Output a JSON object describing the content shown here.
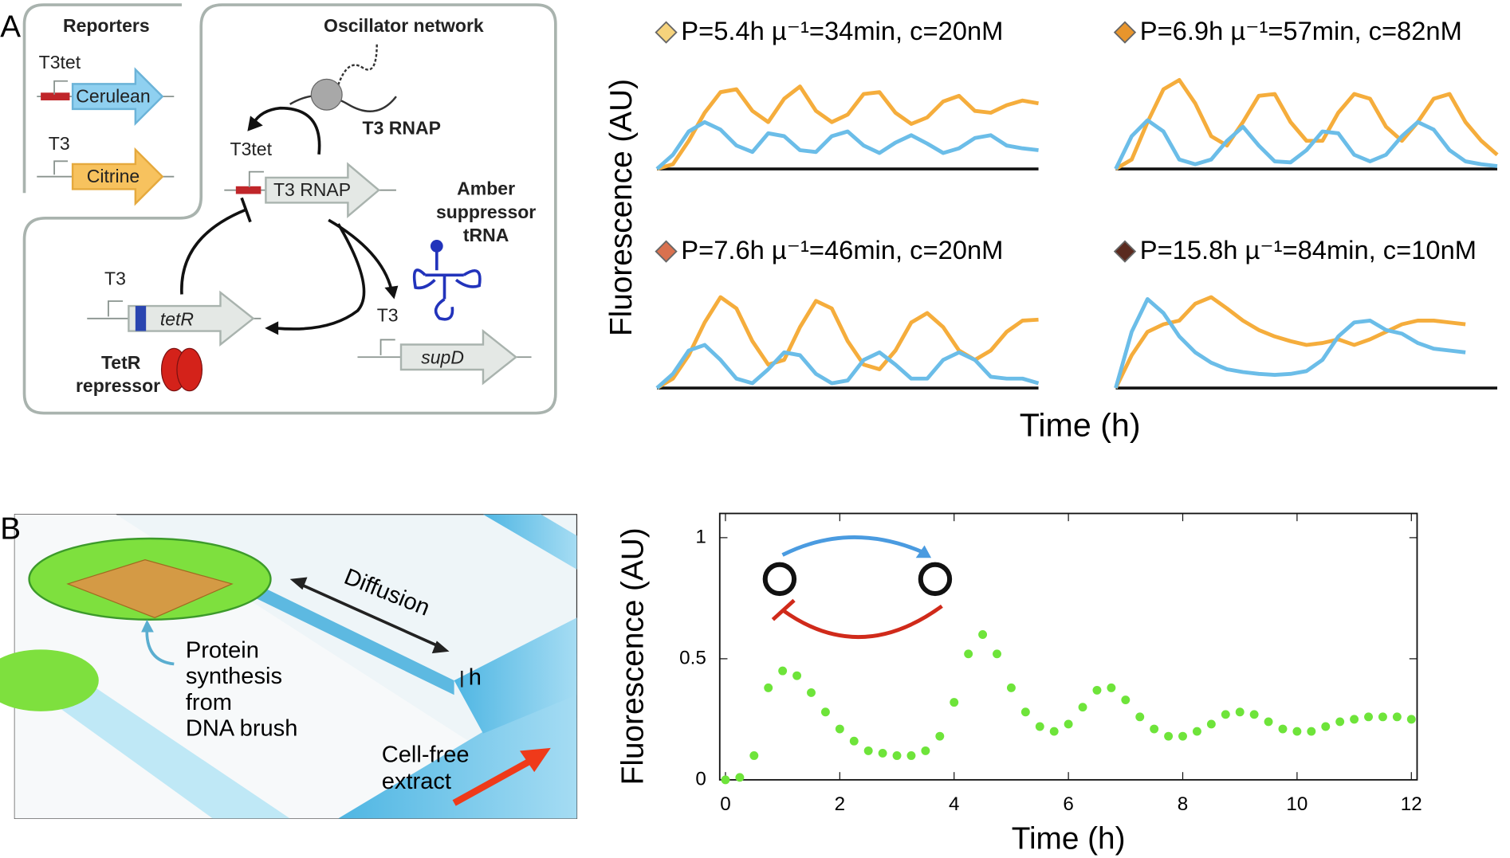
{
  "panel_a": {
    "label": "A",
    "y_label": "Fluorescence (AU)",
    "x_label": "Time (h)",
    "diagram": {
      "reporters": "Reporters",
      "oscillator_network": "Oscillator network",
      "cerulean_promoter": "T3tet",
      "cerulean": "Cerulean",
      "citrine_promoter": "T3",
      "citrine": "Citrine",
      "polymerase": "T3 RNAP",
      "rnap_promoter": "T3tet",
      "rnap_gene": "T3 RNAP",
      "trna": [
        "Amber",
        "suppressor",
        "tRNA"
      ],
      "tetr_promoter": "T3",
      "tetr_gene": "tetR",
      "repressor": [
        "TetR",
        "repressor"
      ],
      "supd_promoter": "T3",
      "supd_gene": "supD"
    }
  },
  "panel_b": {
    "label": "B",
    "diagram": {
      "diffusion": "Diffusion",
      "synthesis": [
        "Protein",
        "synthesis",
        "from",
        "DNA brush"
      ],
      "height": "h",
      "extract": [
        "Cell-free",
        "extract"
      ]
    }
  },
  "chart_data": [
    {
      "type": "line",
      "title": "P=5.4h µ⁻¹=34min, c=20nM",
      "marker_color": "#f6d37c",
      "xlim": [
        0,
        24
      ],
      "ylim": [
        0,
        1
      ],
      "x": [
        0,
        1,
        2,
        3,
        4,
        5,
        6,
        7,
        8,
        9,
        10,
        11,
        12,
        13,
        14,
        15,
        16,
        17,
        18,
        19,
        20,
        21,
        22,
        23,
        24
      ],
      "series": [
        {
          "color": "#f5ad3c",
          "values": [
            0,
            0.05,
            0.3,
            0.6,
            0.82,
            0.85,
            0.62,
            0.5,
            0.75,
            0.88,
            0.62,
            0.5,
            0.58,
            0.8,
            0.82,
            0.6,
            0.48,
            0.55,
            0.72,
            0.78,
            0.62,
            0.6,
            0.68,
            0.73,
            0.7
          ]
        },
        {
          "color": "#6bbde8",
          "values": [
            0,
            0.15,
            0.4,
            0.5,
            0.42,
            0.25,
            0.18,
            0.38,
            0.35,
            0.2,
            0.18,
            0.35,
            0.4,
            0.25,
            0.17,
            0.28,
            0.36,
            0.27,
            0.17,
            0.22,
            0.33,
            0.36,
            0.25,
            0.22,
            0.2
          ]
        }
      ]
    },
    {
      "type": "line",
      "title": "P=6.9h µ⁻¹=57min, c=82nM",
      "marker_color": "#e8952c",
      "xlim": [
        0,
        24
      ],
      "ylim": [
        0,
        1
      ],
      "x": [
        0,
        1,
        2,
        3,
        4,
        5,
        6,
        7,
        8,
        9,
        10,
        11,
        12,
        13,
        14,
        15,
        16,
        17,
        18,
        19,
        20,
        21,
        22,
        23,
        24
      ],
      "series": [
        {
          "color": "#f5ad3c",
          "values": [
            0,
            0.1,
            0.5,
            0.85,
            0.95,
            0.7,
            0.35,
            0.25,
            0.5,
            0.78,
            0.8,
            0.5,
            0.3,
            0.3,
            0.6,
            0.8,
            0.75,
            0.45,
            0.3,
            0.5,
            0.75,
            0.8,
            0.5,
            0.3,
            0.15
          ]
        },
        {
          "color": "#6bbde8",
          "values": [
            0,
            0.35,
            0.52,
            0.4,
            0.1,
            0.05,
            0.1,
            0.3,
            0.45,
            0.25,
            0.08,
            0.07,
            0.2,
            0.4,
            0.38,
            0.15,
            0.08,
            0.15,
            0.35,
            0.5,
            0.42,
            0.2,
            0.08,
            0.05,
            0.03
          ]
        }
      ]
    },
    {
      "type": "line",
      "title": "P=7.6h µ⁻¹=46min, c=20nM",
      "marker_color": "#d9714f",
      "xlim": [
        0,
        24
      ],
      "ylim": [
        0,
        1
      ],
      "x": [
        0,
        1,
        2,
        3,
        4,
        5,
        6,
        7,
        8,
        9,
        10,
        11,
        12,
        13,
        14,
        15,
        16,
        17,
        18,
        19,
        20,
        21,
        22,
        23,
        24
      ],
      "series": [
        {
          "color": "#f5ad3c",
          "values": [
            0,
            0.1,
            0.35,
            0.7,
            0.97,
            0.85,
            0.5,
            0.25,
            0.3,
            0.65,
            0.93,
            0.85,
            0.5,
            0.25,
            0.2,
            0.4,
            0.7,
            0.8,
            0.65,
            0.4,
            0.3,
            0.4,
            0.6,
            0.72,
            0.73
          ]
        },
        {
          "color": "#6bbde8",
          "values": [
            0,
            0.15,
            0.4,
            0.46,
            0.3,
            0.1,
            0.05,
            0.2,
            0.38,
            0.35,
            0.15,
            0.05,
            0.08,
            0.3,
            0.38,
            0.25,
            0.1,
            0.1,
            0.3,
            0.38,
            0.3,
            0.12,
            0.1,
            0.1,
            0.05
          ]
        }
      ]
    },
    {
      "type": "line",
      "title": "P=15.8h µ⁻¹=84min, c=10nM",
      "marker_color": "#5a2a1f",
      "xlim": [
        0,
        24
      ],
      "ylim": [
        0,
        1
      ],
      "x": [
        0,
        1,
        2,
        3,
        4,
        5,
        6,
        7,
        8,
        9,
        10,
        11,
        12,
        13,
        14,
        15,
        16,
        17,
        18,
        19,
        20,
        21,
        22,
        23,
        24
      ],
      "series": [
        {
          "color": "#f5ad3c",
          "values": [
            0,
            0.35,
            0.6,
            0.68,
            0.72,
            0.9,
            0.97,
            0.85,
            0.72,
            0.62,
            0.55,
            0.5,
            0.46,
            0.48,
            0.52,
            0.46,
            0.52,
            0.6,
            0.68,
            0.72,
            0.72,
            0.7,
            0.68,
            null,
            null
          ]
        },
        {
          "color": "#6bbde8",
          "values": [
            0,
            0.6,
            0.95,
            0.8,
            0.55,
            0.38,
            0.27,
            0.2,
            0.17,
            0.15,
            0.14,
            0.15,
            0.18,
            0.3,
            0.55,
            0.7,
            0.72,
            0.62,
            0.58,
            0.48,
            0.42,
            0.4,
            0.38,
            null,
            null
          ]
        }
      ]
    },
    {
      "type": "scatter",
      "x_label": "Time (h)",
      "y_label": "Fluorescence (AU)",
      "color": "#6ee43a",
      "xlim": [
        -0.1,
        12.1
      ],
      "ylim": [
        0,
        1.1
      ],
      "xticks": [
        0,
        2,
        4,
        6,
        8,
        10,
        12
      ],
      "yticks": [
        0,
        0.5,
        1
      ],
      "x": [
        0,
        0.25,
        0.5,
        0.75,
        1,
        1.25,
        1.5,
        1.75,
        2,
        2.25,
        2.5,
        2.75,
        3,
        3.25,
        3.5,
        3.75,
        4,
        4.25,
        4.5,
        4.75,
        5,
        5.25,
        5.5,
        5.75,
        6,
        6.25,
        6.5,
        6.75,
        7,
        7.25,
        7.5,
        7.75,
        8,
        8.25,
        8.5,
        8.75,
        9,
        9.25,
        9.5,
        9.75,
        10,
        10.25,
        10.5,
        10.75,
        11,
        11.25,
        11.5,
        11.75,
        12
      ],
      "values": [
        0,
        0.01,
        0.1,
        0.38,
        0.45,
        0.43,
        0.36,
        0.28,
        0.21,
        0.16,
        0.12,
        0.11,
        0.1,
        0.1,
        0.12,
        0.18,
        0.32,
        0.52,
        0.6,
        0.52,
        0.38,
        0.28,
        0.22,
        0.2,
        0.23,
        0.3,
        0.37,
        0.38,
        0.33,
        0.26,
        0.21,
        0.18,
        0.18,
        0.2,
        0.23,
        0.27,
        0.28,
        0.27,
        0.24,
        0.21,
        0.2,
        0.2,
        0.22,
        0.24,
        0.25,
        0.26,
        0.26,
        0.26,
        0.25
      ]
    }
  ]
}
